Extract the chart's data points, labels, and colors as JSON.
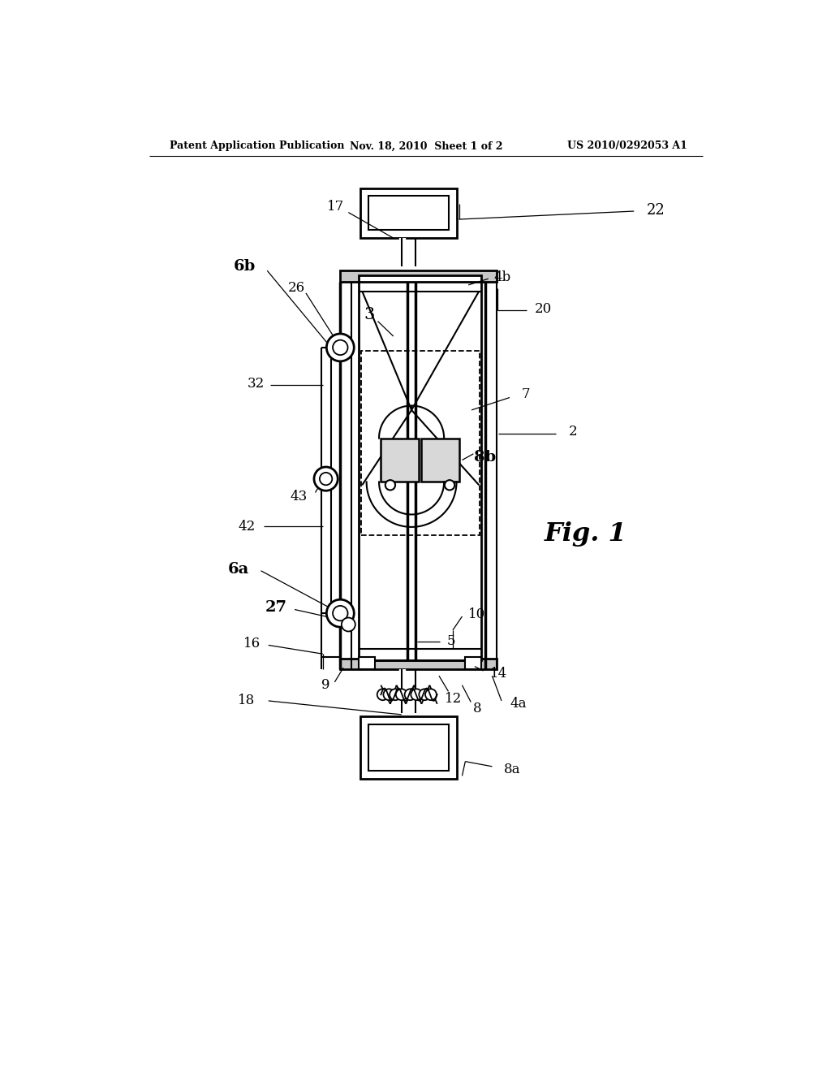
{
  "bg_color": "#ffffff",
  "header_left": "Patent Application Publication",
  "header_mid": "Nov. 18, 2010  Sheet 1 of 2",
  "header_right": "US 2010/0292053 A1",
  "fig_label": "Fig. 1"
}
